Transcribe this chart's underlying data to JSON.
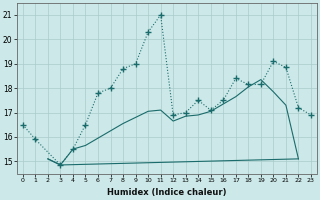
{
  "bg_color": "#cce8e8",
  "grid_color": "#aacccc",
  "line_color": "#1a6b6b",
  "xlabel": "Humidex (Indice chaleur)",
  "xlim": [
    -0.5,
    23.5
  ],
  "ylim": [
    14.5,
    21.5
  ],
  "yticks": [
    15,
    16,
    17,
    18,
    19,
    20,
    21
  ],
  "xticks": [
    0,
    1,
    2,
    3,
    4,
    5,
    6,
    7,
    8,
    9,
    10,
    11,
    12,
    13,
    14,
    15,
    16,
    17,
    18,
    19,
    20,
    21,
    22,
    23
  ],
  "line1_x": [
    0,
    1,
    3,
    4,
    5,
    6,
    7,
    8,
    9,
    10,
    11,
    12,
    13,
    14,
    15,
    16,
    17,
    18,
    19,
    20,
    21,
    22,
    23
  ],
  "line1_y": [
    16.5,
    15.9,
    14.85,
    15.5,
    16.5,
    17.8,
    18.0,
    18.8,
    19.0,
    20.3,
    21.0,
    16.9,
    17.0,
    17.5,
    17.1,
    17.5,
    18.4,
    18.15,
    18.15,
    19.1,
    18.85,
    17.2,
    16.9
  ],
  "line2_x": [
    2,
    3,
    22
  ],
  "line2_y": [
    15.1,
    14.85,
    15.1
  ],
  "line3_x": [
    2,
    3,
    4,
    5,
    6,
    7,
    8,
    9,
    10,
    11,
    12,
    13,
    14,
    15,
    16,
    17,
    18,
    19,
    20,
    21,
    22
  ],
  "line3_y": [
    15.1,
    14.85,
    15.5,
    15.65,
    15.95,
    16.25,
    16.55,
    16.8,
    17.05,
    17.1,
    16.65,
    16.85,
    16.9,
    17.05,
    17.35,
    17.65,
    18.05,
    18.35,
    17.85,
    17.3,
    15.1
  ]
}
